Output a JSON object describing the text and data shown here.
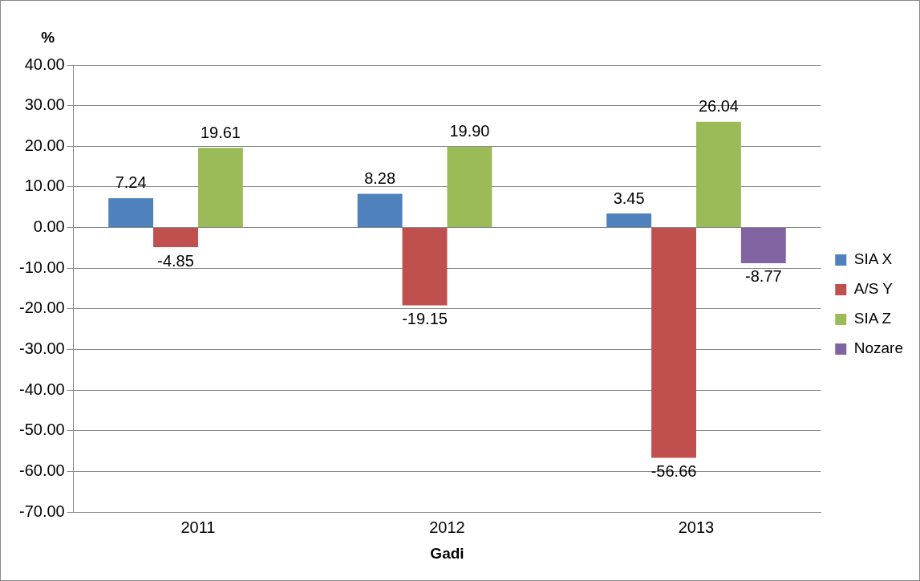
{
  "chart_data": {
    "type": "bar",
    "ylabel": "%",
    "xlabel": "Gadi",
    "categories": [
      "2011",
      "2012",
      "2013"
    ],
    "series": [
      {
        "name": "SIA X",
        "color": "#4f81bd",
        "values": [
          7.24,
          8.28,
          3.45
        ],
        "value_labels": [
          "7.24",
          "8.28",
          "3.45"
        ]
      },
      {
        "name": "A/S Y",
        "color": "#c0504d",
        "values": [
          -4.85,
          -19.15,
          -56.66
        ],
        "value_labels": [
          "-4.85",
          "-19.15",
          "-56.66"
        ]
      },
      {
        "name": "SIA Z",
        "color": "#9bbb59",
        "values": [
          19.61,
          19.9,
          26.04
        ],
        "value_labels": [
          "19.61",
          "19.90",
          "26.04"
        ]
      },
      {
        "name": "Nozare",
        "color": "#8064a2",
        "values": [
          null,
          null,
          -8.77
        ],
        "value_labels": [
          null,
          null,
          "-8.77"
        ]
      }
    ],
    "ylim": [
      -70,
      40
    ],
    "yticks": [
      {
        "value": 40,
        "label": "40.00"
      },
      {
        "value": 30,
        "label": "30.00"
      },
      {
        "value": 20,
        "label": "20.00"
      },
      {
        "value": 10,
        "label": "10.00"
      },
      {
        "value": 0,
        "label": "0.00"
      },
      {
        "value": -10,
        "label": "-10.00"
      },
      {
        "value": -20,
        "label": "-20.00"
      },
      {
        "value": -30,
        "label": "-30.00"
      },
      {
        "value": -40,
        "label": "-40.00"
      },
      {
        "value": -50,
        "label": "-50.00"
      },
      {
        "value": -60,
        "label": "-60.00"
      },
      {
        "value": -70,
        "label": "-70.00"
      }
    ],
    "grid": "y",
    "legend": "right"
  }
}
